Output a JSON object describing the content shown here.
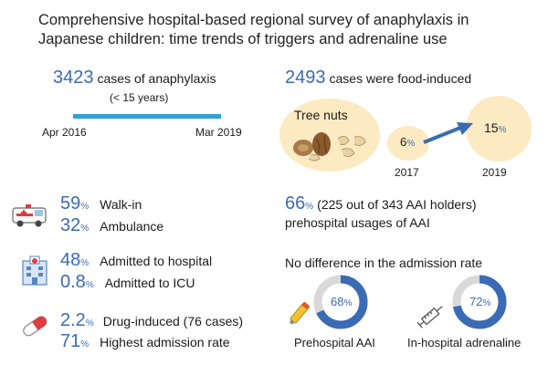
{
  "title": "Comprehensive hospital-based regional survey of anaphylaxis in Japanese children: time trends of triggers and adrenaline use",
  "cases": {
    "number": "3423",
    "text": "cases of anaphylaxis",
    "sub": "(< 15 years)",
    "start": "Apr 2016",
    "end": "Mar 2019"
  },
  "food": {
    "number": "2493",
    "text": "cases were food-induced",
    "label": "Tree nuts",
    "v2017": "6",
    "v2019": "15",
    "y2017": "2017",
    "y2019": "2019",
    "pct": "%"
  },
  "transport": {
    "walk_val": "59",
    "walk_label": "Walk-in",
    "amb_val": "32",
    "amb_label": "Ambulance"
  },
  "admission": {
    "hosp_val": "48",
    "hosp_label": "Admitted to hospital",
    "icu_val": "0.8",
    "icu_label": "Admitted to ICU"
  },
  "drug": {
    "drug_val": "2.2",
    "drug_label": "Drug-induced (76 cases)",
    "high_val": "71",
    "high_label": "Highest admission rate"
  },
  "aai": {
    "val": "66",
    "text": "(225 out of 343 AAI holders)",
    "line2": "prehospital usages of AAI"
  },
  "no_diff": "No difference in the admission rate",
  "donuts": [
    {
      "value": "68",
      "fraction": 0.68,
      "label": "Prehospital AAI"
    },
    {
      "value": "72",
      "fraction": 0.72,
      "label": "In-hospital adrenaline"
    }
  ],
  "pct_sign": "%",
  "colors": {
    "accent": "#3b6bb5",
    "bar": "#2ea3d6",
    "circle": "#fbeac2",
    "ring_bg": "#d9d9d9"
  }
}
